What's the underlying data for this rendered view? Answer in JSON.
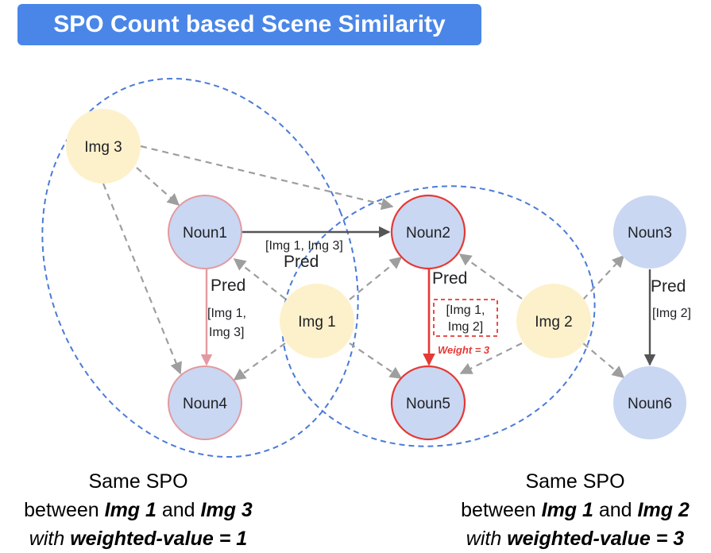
{
  "title": "SPO Count based Scene Similarity",
  "nodes": {
    "img1": "Img 1",
    "img2": "Img 2",
    "img3": "Img 3",
    "noun1": "Noun1",
    "noun2": "Noun2",
    "noun3": "Noun3",
    "noun4": "Noun4",
    "noun5": "Noun5",
    "noun6": "Noun6"
  },
  "edges": {
    "noun1_noun2": {
      "pred": "Pred",
      "imgs_line1": "[Img 1, Img 3]"
    },
    "noun1_noun4": {
      "pred": "Pred",
      "imgs_line1": "[Img 1,",
      "imgs_line2": "Img 3]"
    },
    "noun2_noun5": {
      "pred": "Pred",
      "imgs_line1": "[Img 1,",
      "imgs_line2": "Img 2]",
      "weight": "Weight =  3"
    },
    "noun3_noun6": {
      "pred": "Pred",
      "imgs_line1": "[Img 2]"
    }
  },
  "captions": {
    "left": {
      "line1": "Same SPO",
      "line2_a": "between ",
      "line2_b": "Img 1",
      "line2_c": " and ",
      "line2_d": "Img 3",
      "line3_a": "with ",
      "line3_b": "weighted-value = 1"
    },
    "right": {
      "line1": "Same SPO",
      "line2_a": "between ",
      "line2_b": "Img 1",
      "line2_c": " and ",
      "line2_d": "Img 2",
      "line3_a": "with ",
      "line3_b": "weighted-value = 3"
    }
  },
  "colors": {
    "title_bg": "#4a86e8",
    "noun_fill": "#c9d7f2",
    "img_fill": "#fdf1cc",
    "highlight_red": "#e53935",
    "pink_border": "#e29aa0",
    "group_dash": "#4a7bd8"
  }
}
